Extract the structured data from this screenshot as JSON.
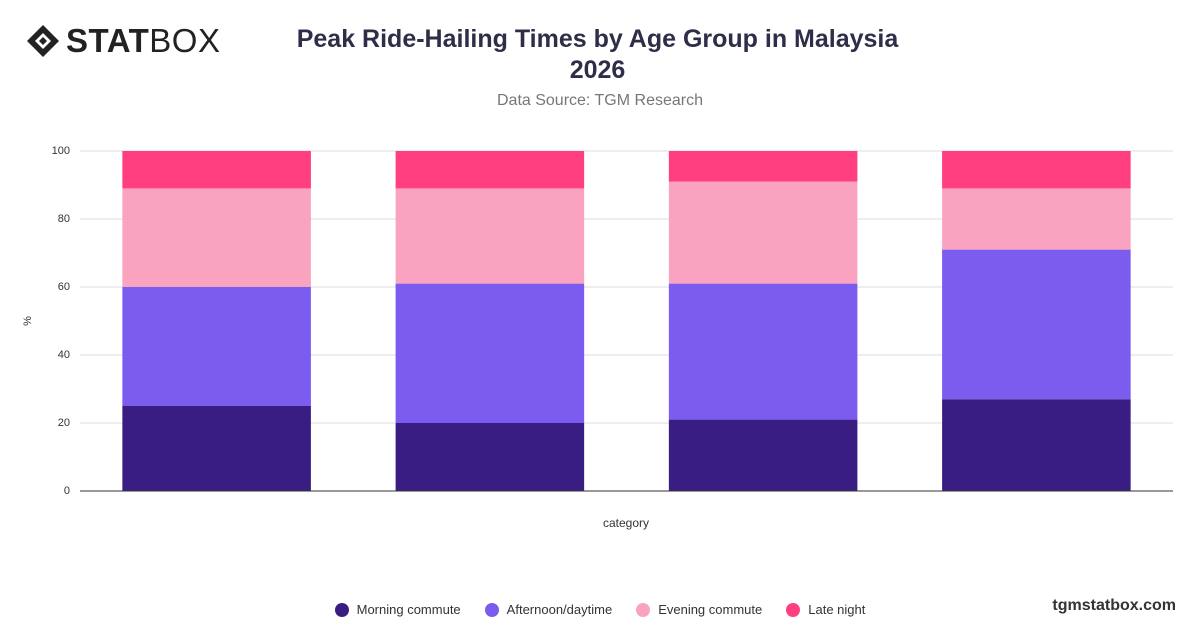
{
  "logo": [
    "STAT",
    "BOX"
  ],
  "footer": "tgmstatbox.com",
  "chart_data": {
    "type": "stacked_bar",
    "title": "Peak Ride-Hailing Times by Age Group in Malaysia 2026",
    "subtitle": "Data Source: TGM Research",
    "x_label": "category",
    "y_label": "%",
    "categories": [
      null,
      null,
      null,
      null
    ],
    "series": [
      {
        "name": "Morning commute",
        "color": "#3a1d82",
        "values": [
          25,
          20,
          21,
          27
        ]
      },
      {
        "name": "Afternoon/daytime",
        "color": "#7c5cee",
        "values": [
          35,
          41,
          40,
          44
        ]
      },
      {
        "name": "Evening commute",
        "color": "#f9a3c1",
        "values": [
          29,
          28,
          30,
          18
        ]
      },
      {
        "name": "Late night",
        "color": "#ff3f7f",
        "values": [
          11,
          11,
          9,
          11
        ]
      }
    ],
    "ylim": [
      0,
      100
    ],
    "yticks": [
      0,
      20,
      40,
      60,
      80,
      100
    ],
    "grid": true
  }
}
